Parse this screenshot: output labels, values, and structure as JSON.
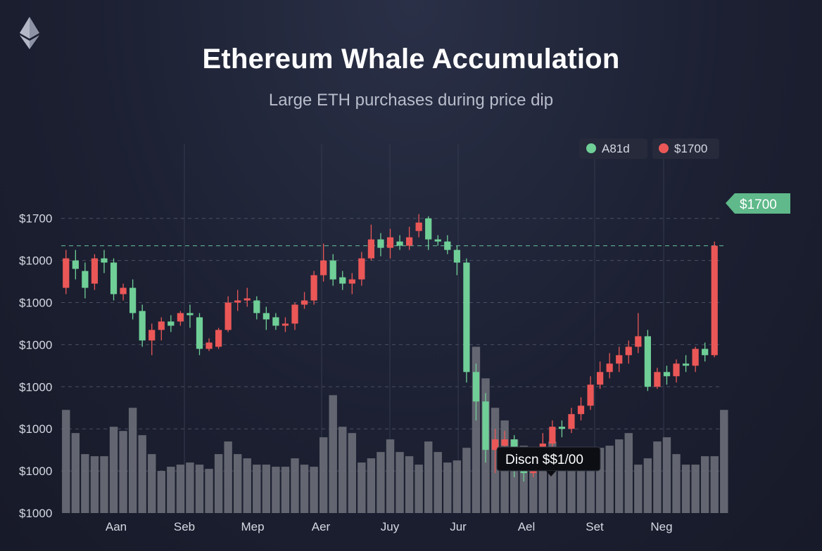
{
  "title": "Ethereum Whale Accumulation",
  "subtitle": "Large ETH purchases during price dip",
  "legend": {
    "items": [
      {
        "label": "A81d",
        "color": "#6fcf97"
      },
      {
        "label": "$1700",
        "color": "#eb5757"
      }
    ]
  },
  "price_tag": "$1700",
  "tooltip": "Discn $$1/00",
  "chart_data": {
    "type": "candlestick",
    "title": "Ethereum Whale Accumulation",
    "subtitle": "Large ETH purchases during price dip",
    "y_tick_labels": [
      "$1700",
      "$1000",
      "$1000",
      "$1000",
      "$1000",
      "$1000",
      "$1000",
      "$1000"
    ],
    "x_tick_labels": [
      "Aan",
      "Seb",
      "Mep",
      "Aer",
      "Juy",
      "Jur",
      "Ael",
      "Set",
      "Neg"
    ],
    "grid": true,
    "legend_position": "top-right",
    "y_scale_note": "y tick labels as printed; values estimated in relative units 0-7.5 (0 = bottom tick, 7 = top tick)",
    "current_price_line": 6.35,
    "colors": {
      "up": "#6fcf97",
      "down": "#eb5757",
      "volume": "#6b6e78"
    },
    "candles": [
      {
        "o": 5.35,
        "c": 6.05,
        "h": 6.25,
        "l": 5.2,
        "dir": "down"
      },
      {
        "o": 6.0,
        "c": 5.8,
        "h": 6.25,
        "l": 5.55,
        "dir": "up"
      },
      {
        "o": 5.75,
        "c": 5.35,
        "h": 5.95,
        "l": 5.1,
        "dir": "up"
      },
      {
        "o": 5.45,
        "c": 6.05,
        "h": 6.15,
        "l": 5.3,
        "dir": "down"
      },
      {
        "o": 6.05,
        "c": 5.95,
        "h": 6.25,
        "l": 5.7,
        "dir": "up"
      },
      {
        "o": 5.95,
        "c": 5.2,
        "h": 6.05,
        "l": 5.05,
        "dir": "up"
      },
      {
        "o": 5.2,
        "c": 5.35,
        "h": 5.45,
        "l": 5.05,
        "dir": "down"
      },
      {
        "o": 5.35,
        "c": 4.75,
        "h": 5.55,
        "l": 4.6,
        "dir": "up"
      },
      {
        "o": 4.8,
        "c": 4.1,
        "h": 4.95,
        "l": 3.95,
        "dir": "up"
      },
      {
        "o": 4.1,
        "c": 4.35,
        "h": 4.5,
        "l": 3.75,
        "dir": "down"
      },
      {
        "o": 4.35,
        "c": 4.55,
        "h": 4.65,
        "l": 4.1,
        "dir": "down"
      },
      {
        "o": 4.55,
        "c": 4.45,
        "h": 4.7,
        "l": 4.3,
        "dir": "up"
      },
      {
        "o": 4.55,
        "c": 4.75,
        "h": 4.8,
        "l": 4.45,
        "dir": "down"
      },
      {
        "o": 4.75,
        "c": 4.7,
        "h": 4.95,
        "l": 4.4,
        "dir": "up"
      },
      {
        "o": 4.65,
        "c": 3.9,
        "h": 4.75,
        "l": 3.75,
        "dir": "up"
      },
      {
        "o": 3.9,
        "c": 4.05,
        "h": 4.15,
        "l": 3.85,
        "dir": "down"
      },
      {
        "o": 3.95,
        "c": 4.35,
        "h": 4.4,
        "l": 3.9,
        "dir": "down"
      },
      {
        "o": 4.35,
        "c": 5.0,
        "h": 5.15,
        "l": 4.3,
        "dir": "down"
      },
      {
        "o": 5.0,
        "c": 5.05,
        "h": 5.3,
        "l": 4.8,
        "dir": "down"
      },
      {
        "o": 5.05,
        "c": 5.1,
        "h": 5.35,
        "l": 4.9,
        "dir": "down"
      },
      {
        "o": 5.05,
        "c": 4.75,
        "h": 5.15,
        "l": 4.6,
        "dir": "up"
      },
      {
        "o": 4.75,
        "c": 4.6,
        "h": 4.9,
        "l": 4.35,
        "dir": "up"
      },
      {
        "o": 4.65,
        "c": 4.45,
        "h": 4.75,
        "l": 4.35,
        "dir": "up"
      },
      {
        "o": 4.45,
        "c": 4.5,
        "h": 4.65,
        "l": 4.3,
        "dir": "down"
      },
      {
        "o": 4.5,
        "c": 4.95,
        "h": 5.0,
        "l": 4.35,
        "dir": "down"
      },
      {
        "o": 4.95,
        "c": 5.05,
        "h": 5.25,
        "l": 4.85,
        "dir": "down"
      },
      {
        "o": 5.05,
        "c": 5.65,
        "h": 5.75,
        "l": 4.95,
        "dir": "down"
      },
      {
        "o": 5.65,
        "c": 6.0,
        "h": 6.4,
        "l": 5.5,
        "dir": "down"
      },
      {
        "o": 6.0,
        "c": 5.55,
        "h": 6.15,
        "l": 5.4,
        "dir": "up"
      },
      {
        "o": 5.6,
        "c": 5.45,
        "h": 5.75,
        "l": 5.3,
        "dir": "up"
      },
      {
        "o": 5.45,
        "c": 5.55,
        "h": 5.7,
        "l": 5.2,
        "dir": "down"
      },
      {
        "o": 5.55,
        "c": 6.05,
        "h": 6.2,
        "l": 5.4,
        "dir": "down"
      },
      {
        "o": 6.05,
        "c": 6.5,
        "h": 6.85,
        "l": 6.0,
        "dir": "down"
      },
      {
        "o": 6.5,
        "c": 6.3,
        "h": 6.65,
        "l": 6.1,
        "dir": "up"
      },
      {
        "o": 6.3,
        "c": 6.55,
        "h": 6.75,
        "l": 6.05,
        "dir": "down"
      },
      {
        "o": 6.45,
        "c": 6.35,
        "h": 6.6,
        "l": 6.25,
        "dir": "up"
      },
      {
        "o": 6.35,
        "c": 6.55,
        "h": 6.8,
        "l": 6.25,
        "dir": "down"
      },
      {
        "o": 6.7,
        "c": 6.9,
        "h": 7.1,
        "l": 6.55,
        "dir": "down"
      },
      {
        "o": 7.0,
        "c": 6.5,
        "h": 7.05,
        "l": 6.25,
        "dir": "up"
      },
      {
        "o": 6.5,
        "c": 6.45,
        "h": 6.6,
        "l": 6.35,
        "dir": "up"
      },
      {
        "o": 6.45,
        "c": 6.25,
        "h": 6.6,
        "l": 6.15,
        "dir": "up"
      },
      {
        "o": 6.25,
        "c": 5.95,
        "h": 6.35,
        "l": 5.65,
        "dir": "up"
      },
      {
        "o": 5.95,
        "c": 3.35,
        "h": 6.05,
        "l": 3.1,
        "dir": "up"
      },
      {
        "o": 3.35,
        "c": 2.65,
        "h": 3.55,
        "l": 2.2,
        "dir": "up"
      },
      {
        "o": 2.65,
        "c": 1.5,
        "h": 2.85,
        "l": 1.2,
        "dir": "up"
      },
      {
        "o": 1.5,
        "c": 1.75,
        "h": 2.0,
        "l": 0.95,
        "dir": "down"
      },
      {
        "o": 1.75,
        "c": 1.6,
        "h": 1.95,
        "l": 1.45,
        "dir": "down"
      },
      {
        "o": 1.75,
        "c": 1.2,
        "h": 1.85,
        "l": 0.85,
        "dir": "up"
      },
      {
        "o": 1.15,
        "c": 0.95,
        "h": 1.3,
        "l": 0.75,
        "dir": "up"
      },
      {
        "o": 0.95,
        "c": 1.45,
        "h": 1.55,
        "l": 0.85,
        "dir": "down"
      },
      {
        "o": 1.45,
        "c": 1.65,
        "h": 1.9,
        "l": 1.25,
        "dir": "down"
      },
      {
        "o": 1.65,
        "c": 2.05,
        "h": 2.2,
        "l": 1.5,
        "dir": "down"
      },
      {
        "o": 2.05,
        "c": 2.0,
        "h": 2.2,
        "l": 1.8,
        "dir": "up"
      },
      {
        "o": 2.0,
        "c": 2.35,
        "h": 2.5,
        "l": 1.9,
        "dir": "down"
      },
      {
        "o": 2.35,
        "c": 2.55,
        "h": 2.75,
        "l": 2.2,
        "dir": "down"
      },
      {
        "o": 2.55,
        "c": 3.05,
        "h": 3.25,
        "l": 2.45,
        "dir": "down"
      },
      {
        "o": 3.05,
        "c": 3.35,
        "h": 3.6,
        "l": 2.95,
        "dir": "down"
      },
      {
        "o": 3.35,
        "c": 3.55,
        "h": 3.8,
        "l": 3.2,
        "dir": "down"
      },
      {
        "o": 3.55,
        "c": 3.75,
        "h": 3.95,
        "l": 3.35,
        "dir": "down"
      },
      {
        "o": 3.75,
        "c": 3.95,
        "h": 4.1,
        "l": 3.55,
        "dir": "down"
      },
      {
        "o": 3.95,
        "c": 4.2,
        "h": 4.75,
        "l": 3.8,
        "dir": "down"
      },
      {
        "o": 4.2,
        "c": 3.0,
        "h": 4.35,
        "l": 2.9,
        "dir": "up"
      },
      {
        "o": 3.0,
        "c": 3.35,
        "h": 3.45,
        "l": 2.95,
        "dir": "down"
      },
      {
        "o": 3.35,
        "c": 3.25,
        "h": 3.5,
        "l": 3.05,
        "dir": "up"
      },
      {
        "o": 3.25,
        "c": 3.55,
        "h": 3.65,
        "l": 3.1,
        "dir": "down"
      },
      {
        "o": 3.55,
        "c": 3.5,
        "h": 3.75,
        "l": 3.35,
        "dir": "up"
      },
      {
        "o": 3.5,
        "c": 3.9,
        "h": 3.95,
        "l": 3.35,
        "dir": "down"
      },
      {
        "o": 3.9,
        "c": 3.75,
        "h": 4.05,
        "l": 3.6,
        "dir": "up"
      },
      {
        "o": 3.75,
        "c": 6.35,
        "h": 6.45,
        "l": 3.7,
        "dir": "down"
      }
    ],
    "volume": [
      2.45,
      1.9,
      1.4,
      1.35,
      1.35,
      2.05,
      1.95,
      2.5,
      1.85,
      1.4,
      1.0,
      1.1,
      1.15,
      1.2,
      1.15,
      1.05,
      1.4,
      1.7,
      1.4,
      1.3,
      1.15,
      1.15,
      1.1,
      1.1,
      1.3,
      1.15,
      1.1,
      1.8,
      2.8,
      2.05,
      1.9,
      1.2,
      1.3,
      1.45,
      1.75,
      1.45,
      1.35,
      1.15,
      1.7,
      1.45,
      1.2,
      1.25,
      1.55,
      3.95,
      3.2,
      2.5,
      2.2,
      1.75,
      1.6,
      1.45,
      1.15,
      1.7,
      1.5,
      1.55,
      1.45,
      1.3,
      1.55,
      1.6,
      1.75,
      1.9,
      1.15,
      1.3,
      1.7,
      1.8,
      1.4,
      1.15,
      1.15,
      1.35,
      1.35,
      2.45
    ]
  }
}
